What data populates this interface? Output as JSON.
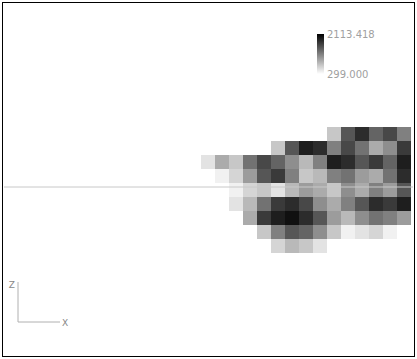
{
  "chart_data": {
    "type": "heatmap",
    "cells": [
      [
        299,
        299,
        299,
        299,
        299,
        299,
        299,
        299,
        299,
        700,
        1500,
        1800,
        1400,
        1600,
        1200
      ],
      [
        299,
        299,
        299,
        299,
        299,
        700,
        1500,
        1900,
        1800,
        1200,
        1600,
        1300,
        900,
        1100,
        1700
      ],
      [
        500,
        900,
        700,
        1300,
        1600,
        1400,
        1100,
        800,
        1200,
        1900,
        1800,
        1500,
        1700,
        1400,
        1900
      ],
      [
        299,
        400,
        600,
        1000,
        1500,
        1700,
        1200,
        700,
        800,
        1200,
        1300,
        1000,
        900,
        1300,
        1800
      ],
      [
        299,
        299,
        400,
        600,
        700,
        500,
        800,
        1000,
        900,
        700,
        1100,
        900,
        1200,
        1000,
        1500
      ],
      [
        299,
        299,
        500,
        800,
        1300,
        1700,
        1800,
        1600,
        1100,
        900,
        1200,
        1500,
        1800,
        1700,
        1900
      ],
      [
        299,
        299,
        299,
        900,
        1700,
        1900,
        2000,
        1800,
        1500,
        1000,
        800,
        1100,
        1300,
        1200,
        1000
      ],
      [
        299,
        299,
        299,
        299,
        700,
        1200,
        1500,
        1400,
        1100,
        700,
        400,
        500,
        600,
        400,
        299
      ],
      [
        299,
        299,
        299,
        299,
        299,
        600,
        800,
        700,
        500,
        299,
        299,
        299,
        299,
        299,
        299
      ]
    ],
    "color_range": [
      299.0,
      2113.418
    ],
    "color_ticks": [
      2113.418,
      {
        "value": 299.0,
        "label": "299.000"
      }
    ],
    "xlabel": "X",
    "ylabel": "Z",
    "tick_labels": false
  }
}
